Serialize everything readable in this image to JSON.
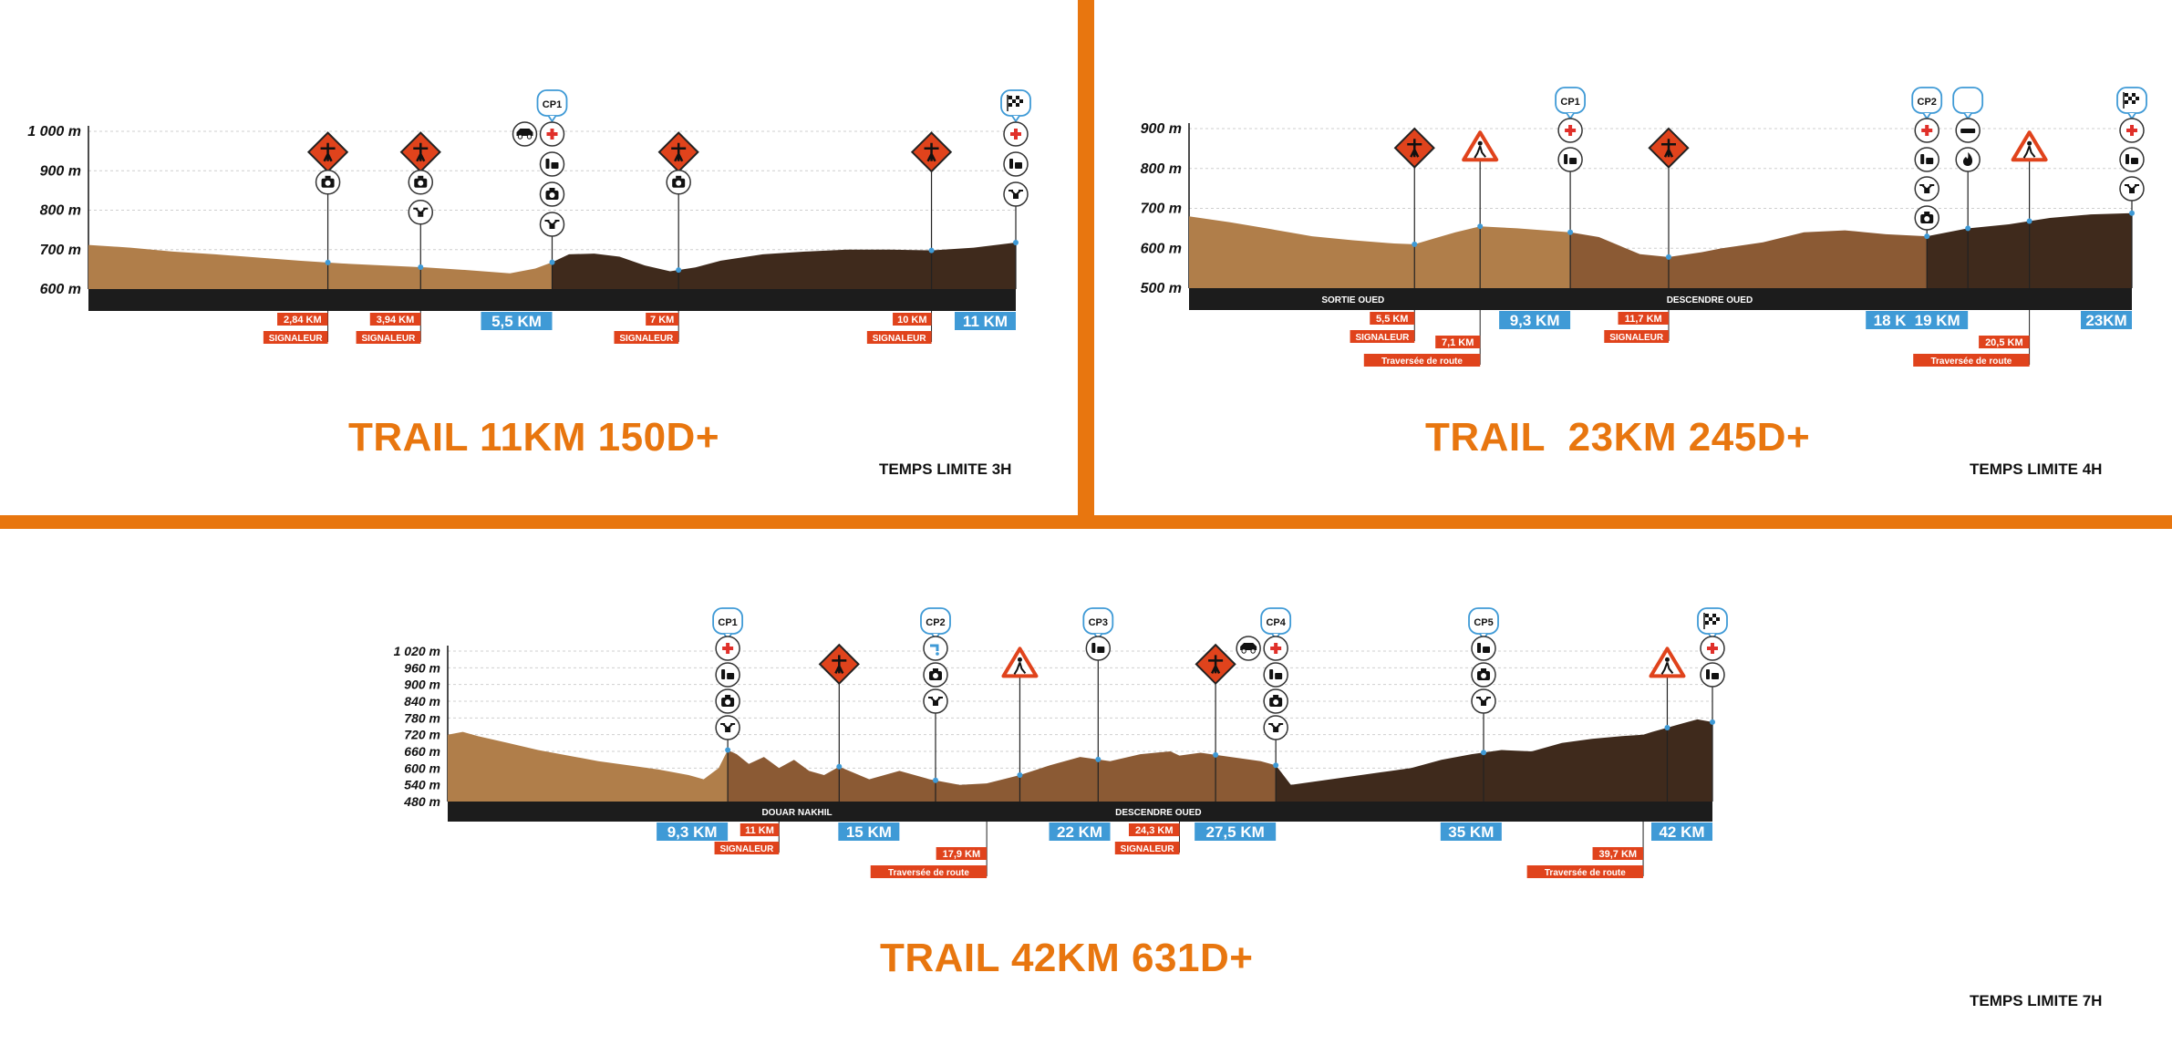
{
  "colors": {
    "accent": "#e8760f",
    "km_box": "#3f9ad6",
    "signal_box": "#e0431c",
    "terrain_light": "#b07e4a",
    "terrain_mid": "#8b5a34",
    "terrain_dark": "#3f2a1c",
    "ground_band": "#1c1c1c"
  },
  "chart_data": [
    {
      "type": "area",
      "title": "TRAIL 11KM 150D+",
      "subtitle": "TEMPS LIMITE 3H",
      "y_ticks": [
        "1 000 m",
        "900 m",
        "800 m",
        "700 m",
        "600 m"
      ],
      "ylim": [
        600,
        1000
      ],
      "xlim": [
        0,
        11
      ],
      "x": [
        0,
        0.5,
        1,
        1.5,
        2,
        2.5,
        3,
        3.5,
        4,
        4.5,
        5,
        5.3,
        5.5,
        5.7,
        6,
        6.3,
        6.6,
        6.9,
        7.2,
        7.5,
        8,
        8.5,
        9,
        9.5,
        10,
        10.5,
        11
      ],
      "y": [
        712,
        705,
        695,
        688,
        680,
        672,
        665,
        660,
        655,
        648,
        640,
        652,
        668,
        688,
        690,
        682,
        660,
        645,
        655,
        672,
        688,
        695,
        700,
        700,
        698,
        705,
        718
      ],
      "segments": [
        {
          "from": 0,
          "to": 5.5,
          "tone": "light"
        },
        {
          "from": 5.5,
          "to": 11,
          "tone": "dark"
        }
      ],
      "band_labels": [],
      "km_markers": [
        {
          "km": 5.5,
          "label": "5,5 KM"
        },
        {
          "km": 11,
          "label": "11 KM"
        }
      ],
      "signal_markers": [
        {
          "km": 2.84,
          "label": "2,84 KM",
          "tag": "SIGNALEUR"
        },
        {
          "km": 3.94,
          "label": "3,94 KM",
          "tag": "SIGNALEUR"
        },
        {
          "km": 7,
          "label": "7 KM",
          "tag": "SIGNALEUR"
        },
        {
          "km": 10,
          "label": "10 KM",
          "tag": "SIGNALEUR"
        }
      ],
      "checkpoints": [
        {
          "km": 5.5,
          "label": "CP1"
        }
      ],
      "posts": [
        {
          "km": 2.84,
          "icons": [
            "marshal-sign",
            "camera"
          ]
        },
        {
          "km": 3.94,
          "icons": [
            "marshal-sign",
            "camera",
            "drone"
          ]
        },
        {
          "km": 5.5,
          "icons": [
            "cp-bubble",
            "medical-cross",
            "water-refill",
            "camera",
            "drone"
          ],
          "side_icon": "car"
        },
        {
          "km": 7,
          "icons": [
            "marshal-sign",
            "camera"
          ]
        },
        {
          "km": 10,
          "icons": [
            "marshal-sign"
          ]
        },
        {
          "km": 11,
          "icons": [
            "finish-flag",
            "medical-cross",
            "water-refill",
            "drone"
          ]
        }
      ]
    },
    {
      "type": "area",
      "title": "TRAIL  23KM 245D+",
      "subtitle": "TEMPS LIMITE 4H",
      "y_ticks": [
        "900 m",
        "800 m",
        "700 m",
        "600 m",
        "500 m"
      ],
      "ylim": [
        500,
        900
      ],
      "xlim": [
        0,
        23
      ],
      "x": [
        0,
        1,
        2,
        3,
        4,
        5,
        5.5,
        6,
        6.5,
        7.1,
        8,
        9.3,
        10,
        11,
        11.7,
        12.5,
        13,
        14,
        15,
        16,
        17,
        18,
        18.5,
        19,
        20,
        20.5,
        21,
        22,
        23
      ],
      "y": [
        680,
        665,
        648,
        630,
        620,
        612,
        610,
        625,
        640,
        655,
        650,
        640,
        628,
        585,
        578,
        590,
        600,
        615,
        640,
        645,
        635,
        630,
        640,
        650,
        660,
        668,
        676,
        685,
        688
      ],
      "segments": [
        {
          "from": 0,
          "to": 9.3,
          "tone": "light"
        },
        {
          "from": 9.3,
          "to": 18,
          "tone": "mid"
        },
        {
          "from": 18,
          "to": 23,
          "tone": "dark"
        }
      ],
      "band_labels": [
        {
          "km": 4,
          "label": "SORTIE OUED"
        },
        {
          "km": 12.7,
          "label": "DESCENDRE OUED"
        }
      ],
      "km_markers": [
        {
          "km": 9.3,
          "label": "9,3 KM"
        },
        {
          "km": 18,
          "label": "18 KM"
        },
        {
          "km": 19,
          "label": "19 KM"
        },
        {
          "km": 23,
          "label": "23KM"
        }
      ],
      "signal_markers": [
        {
          "km": 5.5,
          "label": "5,5 KM",
          "tag": "SIGNALEUR",
          "row": 0
        },
        {
          "km": 7.1,
          "label": "7,1 KM",
          "tag": "Traversée de route",
          "row": 1
        },
        {
          "km": 11.7,
          "label": "11,7 KM",
          "tag": "SIGNALEUR",
          "row": 0
        },
        {
          "km": 20.5,
          "label": "20,5 KM",
          "tag": "Traversée de route",
          "row": 1
        }
      ],
      "checkpoints": [
        {
          "km": 9.3,
          "label": "CP1"
        },
        {
          "km": 18,
          "label": "CP2"
        }
      ],
      "posts": [
        {
          "km": 5.5,
          "icons": [
            "marshal-sign"
          ]
        },
        {
          "km": 7.1,
          "icons": [
            "pedestrian-warning"
          ]
        },
        {
          "km": 9.3,
          "icons": [
            "cp-bubble",
            "medical-cross",
            "water-refill"
          ]
        },
        {
          "km": 11.7,
          "icons": [
            "marshal-sign"
          ]
        },
        {
          "km": 18,
          "icons": [
            "cp-bubble",
            "medical-cross",
            "water-refill",
            "drone",
            "camera"
          ]
        },
        {
          "km": 19,
          "icons": [
            "logo-bubble",
            "snack",
            "fire"
          ]
        },
        {
          "km": 20.5,
          "icons": [
            "pedestrian-warning"
          ]
        },
        {
          "km": 23,
          "icons": [
            "finish-flag",
            "medical-cross",
            "water-refill",
            "drone"
          ]
        }
      ]
    },
    {
      "type": "area",
      "title": "TRAIL 42KM 631D+",
      "subtitle": "TEMPS LIMITE 7H",
      "y_ticks": [
        "1 020 m",
        "960 m",
        "900 m",
        "840 m",
        "780 m",
        "720 m",
        "660 m",
        "600 m",
        "540 m",
        "480 m"
      ],
      "ylim": [
        480,
        1020
      ],
      "xlim": [
        0,
        42
      ],
      "x": [
        0,
        0.5,
        1,
        2,
        3,
        4,
        5,
        6,
        7,
        8,
        8.5,
        9,
        9.3,
        9.6,
        10,
        10.5,
        11,
        11.5,
        12,
        12.5,
        13,
        14,
        15,
        16,
        17,
        17.9,
        19,
        20,
        21,
        22,
        23,
        24,
        24.3,
        25,
        26,
        27,
        27.5,
        28,
        29,
        30,
        31,
        32,
        33,
        34,
        35,
        36,
        37,
        38,
        39,
        39.7,
        40,
        41,
        41.5,
        42
      ],
      "y": [
        720,
        730,
        715,
        690,
        665,
        645,
        625,
        610,
        595,
        575,
        560,
        600,
        665,
        650,
        615,
        640,
        600,
        630,
        590,
        575,
        605,
        560,
        590,
        560,
        540,
        545,
        575,
        610,
        640,
        625,
        650,
        660,
        645,
        655,
        640,
        625,
        610,
        540,
        555,
        570,
        585,
        600,
        630,
        650,
        665,
        660,
        690,
        705,
        715,
        720,
        730,
        760,
        775,
        765
      ],
      "segments": [
        {
          "from": 0,
          "to": 9.3,
          "tone": "light"
        },
        {
          "from": 9.3,
          "to": 27.5,
          "tone": "mid"
        },
        {
          "from": 27.5,
          "to": 42,
          "tone": "dark"
        }
      ],
      "band_labels": [
        {
          "km": 11.6,
          "label": "DOUAR NAKHIL"
        },
        {
          "km": 23.6,
          "label": "DESCENDRE OUED"
        }
      ],
      "km_markers": [
        {
          "km": 9.3,
          "label": "9,3 KM"
        },
        {
          "km": 15,
          "label": "15 KM"
        },
        {
          "km": 22,
          "label": "22 KM"
        },
        {
          "km": 27.5,
          "label": "27,5 KM"
        },
        {
          "km": 35,
          "label": "35 KM"
        },
        {
          "km": 42,
          "label": "42 KM"
        }
      ],
      "signal_markers": [
        {
          "km": 11,
          "label": "11 KM",
          "tag": "SIGNALEUR",
          "row": 0
        },
        {
          "km": 17.9,
          "label": "17,9 KM",
          "tag": "Traversée de route",
          "row": 1
        },
        {
          "km": 24.3,
          "label": "24,3 KM",
          "tag": "SIGNALEUR",
          "row": 0
        },
        {
          "km": 39.7,
          "label": "39,7 KM",
          "tag": "Traversée de route",
          "row": 1
        }
      ],
      "checkpoints": [
        {
          "km": 9.3,
          "label": "CP1"
        },
        {
          "km": 16.2,
          "label": "CP2"
        },
        {
          "km": 21.6,
          "label": "CP3"
        },
        {
          "km": 27.5,
          "label": "CP4"
        },
        {
          "km": 34.4,
          "label": "CP5"
        }
      ],
      "posts": [
        {
          "km": 9.3,
          "icons": [
            "cp-bubble",
            "medical-cross",
            "water-refill",
            "camera",
            "drone"
          ]
        },
        {
          "km": 13,
          "icons": [
            "marshal-sign"
          ]
        },
        {
          "km": 16.2,
          "icons": [
            "cp-bubble",
            "water-tap",
            "camera",
            "drone"
          ]
        },
        {
          "km": 19,
          "icons": [
            "pedestrian-warning"
          ]
        },
        {
          "km": 21.6,
          "icons": [
            "cp-bubble",
            "water-refill"
          ]
        },
        {
          "km": 25.5,
          "icons": [
            "marshal-sign"
          ]
        },
        {
          "km": 27.5,
          "icons": [
            "cp-bubble",
            "medical-cross",
            "water-refill",
            "camera",
            "drone"
          ],
          "side_icon": "car"
        },
        {
          "km": 34.4,
          "icons": [
            "cp-bubble",
            "water-refill",
            "camera",
            "drone"
          ]
        },
        {
          "km": 40.5,
          "icons": [
            "pedestrian-warning"
          ]
        },
        {
          "km": 42,
          "icons": [
            "finish-flag",
            "medical-cross",
            "water-refill"
          ]
        }
      ]
    }
  ]
}
